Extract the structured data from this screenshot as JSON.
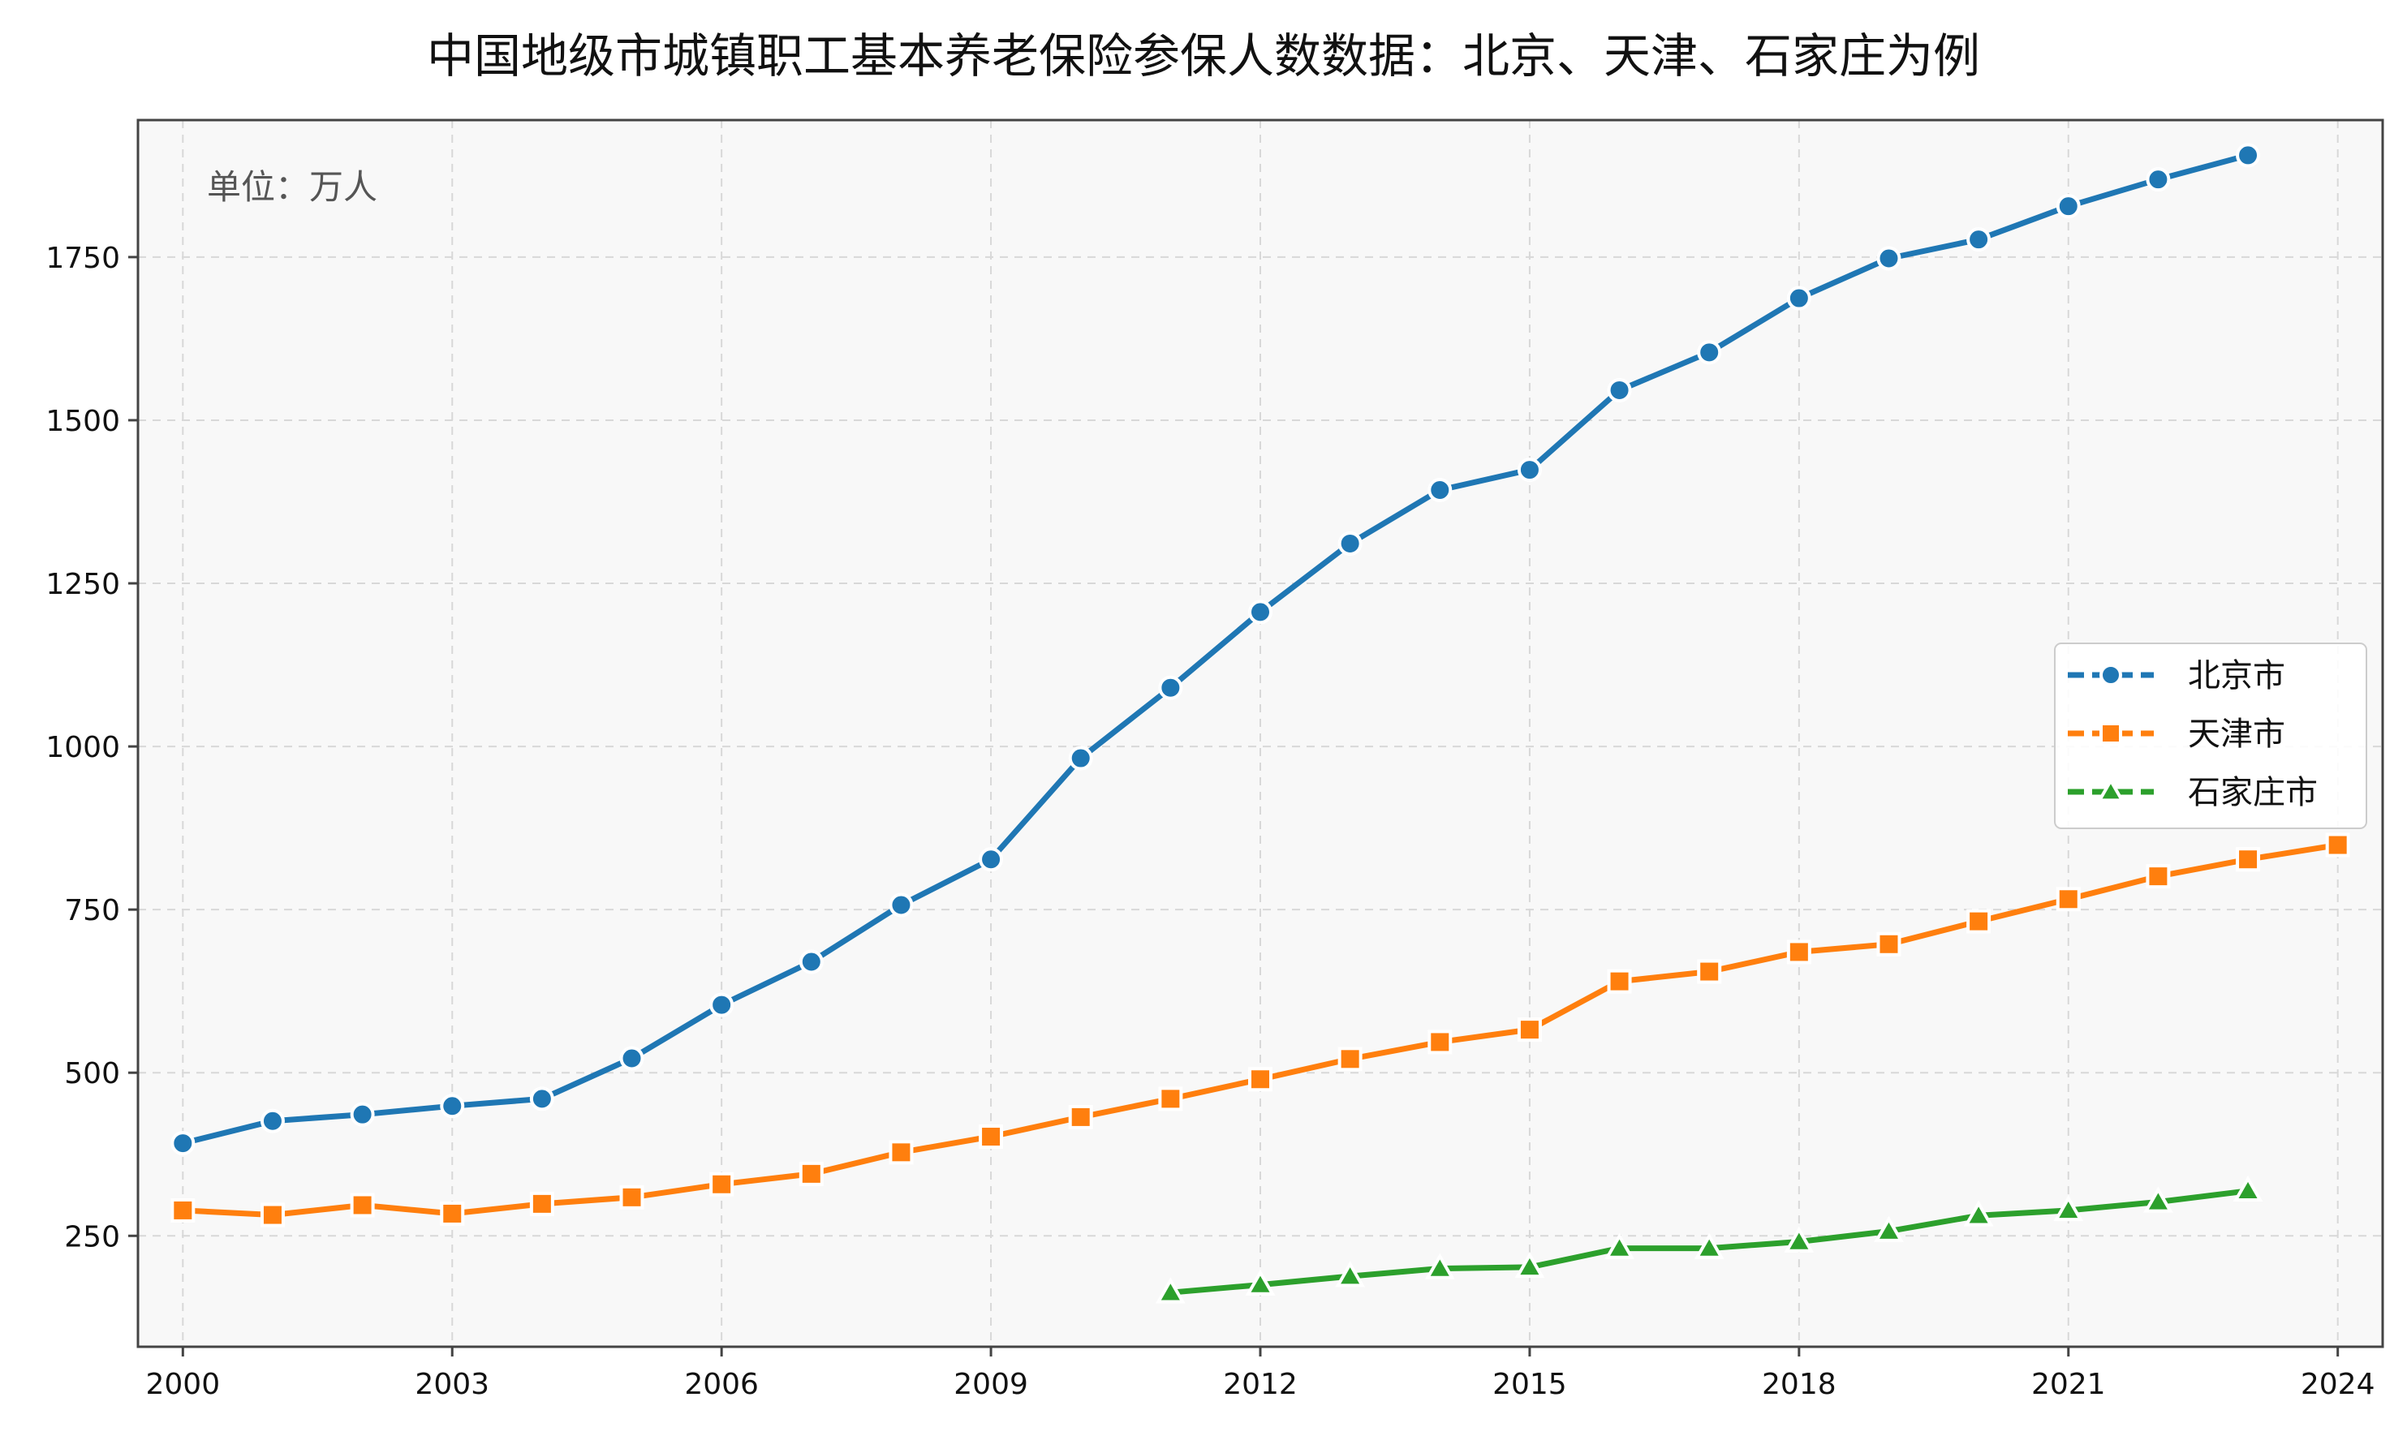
{
  "chart_data": {
    "type": "line",
    "title": "中国地级市城镇职工基本养老保险参保人数数据：北京、天津、石家庄为例",
    "unit_note": "单位：万人",
    "xlabel": "",
    "ylabel": "",
    "xlim": [
      1999.5,
      2024.5
    ],
    "ylim": [
      80,
      1960
    ],
    "x_ticks": [
      2000,
      2003,
      2006,
      2009,
      2012,
      2015,
      2018,
      2021,
      2024
    ],
    "y_ticks": [
      250,
      500,
      750,
      1000,
      1250,
      1500,
      1750
    ],
    "grid": true,
    "legend_position": "center-right",
    "series": [
      {
        "name": "北京市",
        "color": "#1f77b4",
        "marker": "circle",
        "points": [
          [
            2000,
            392
          ],
          [
            2001,
            426
          ],
          [
            2002,
            436
          ],
          [
            2003,
            449
          ],
          [
            2004,
            460
          ],
          [
            2005,
            522
          ],
          [
            2006,
            604
          ],
          [
            2007,
            670
          ],
          [
            2008,
            757
          ],
          [
            2009,
            827
          ],
          [
            2010,
            982
          ],
          [
            2011,
            1090
          ],
          [
            2012,
            1206
          ],
          [
            2013,
            1311
          ],
          [
            2014,
            1393
          ],
          [
            2015,
            1424
          ],
          [
            2016,
            1546
          ],
          [
            2017,
            1604
          ],
          [
            2018,
            1687
          ],
          [
            2019,
            1748
          ],
          [
            2020,
            1777
          ],
          [
            2021,
            1828
          ],
          [
            2022,
            1869
          ],
          [
            2023,
            1906
          ]
        ]
      },
      {
        "name": "天津市",
        "color": "#ff7f0e",
        "marker": "square",
        "points": [
          [
            2000,
            289
          ],
          [
            2001,
            282
          ],
          [
            2002,
            297
          ],
          [
            2003,
            284
          ],
          [
            2004,
            299
          ],
          [
            2005,
            309
          ],
          [
            2006,
            329
          ],
          [
            2007,
            345
          ],
          [
            2008,
            378
          ],
          [
            2009,
            402
          ],
          [
            2010,
            432
          ],
          [
            2011,
            460
          ],
          [
            2012,
            490
          ],
          [
            2013,
            521
          ],
          [
            2014,
            547
          ],
          [
            2015,
            566
          ],
          [
            2016,
            640
          ],
          [
            2017,
            655
          ],
          [
            2018,
            685
          ],
          [
            2019,
            697
          ],
          [
            2020,
            732
          ],
          [
            2021,
            766
          ],
          [
            2022,
            801
          ],
          [
            2023,
            827
          ],
          [
            2024,
            849
          ]
        ]
      },
      {
        "name": "石家庄市",
        "color": "#2ca02c",
        "marker": "triangle",
        "points": [
          [
            2011,
            163
          ],
          [
            2012,
            175
          ],
          [
            2013,
            188
          ],
          [
            2014,
            200
          ],
          [
            2015,
            202
          ],
          [
            2016,
            231
          ],
          [
            2017,
            231
          ],
          [
            2018,
            241
          ],
          [
            2019,
            257
          ],
          [
            2020,
            281
          ],
          [
            2021,
            289
          ],
          [
            2022,
            302
          ],
          [
            2023,
            319
          ]
        ]
      }
    ]
  }
}
